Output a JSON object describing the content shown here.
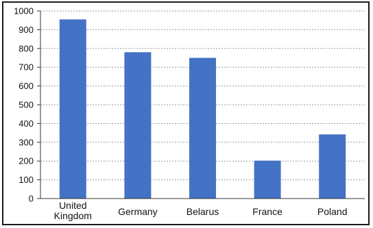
{
  "chart_data": {
    "type": "bar",
    "categories": [
      "United\nKingdom",
      "Germany",
      "Belarus",
      "France",
      "Poland"
    ],
    "values": [
      955,
      780,
      750,
      202,
      342
    ],
    "ylim": [
      0,
      1000
    ],
    "yticks": [
      0,
      100,
      200,
      300,
      400,
      500,
      600,
      700,
      800,
      900,
      1000
    ],
    "grid": true,
    "legend": "none",
    "bar_color": "#4472C4",
    "grid_color": "#9a9a9a"
  }
}
